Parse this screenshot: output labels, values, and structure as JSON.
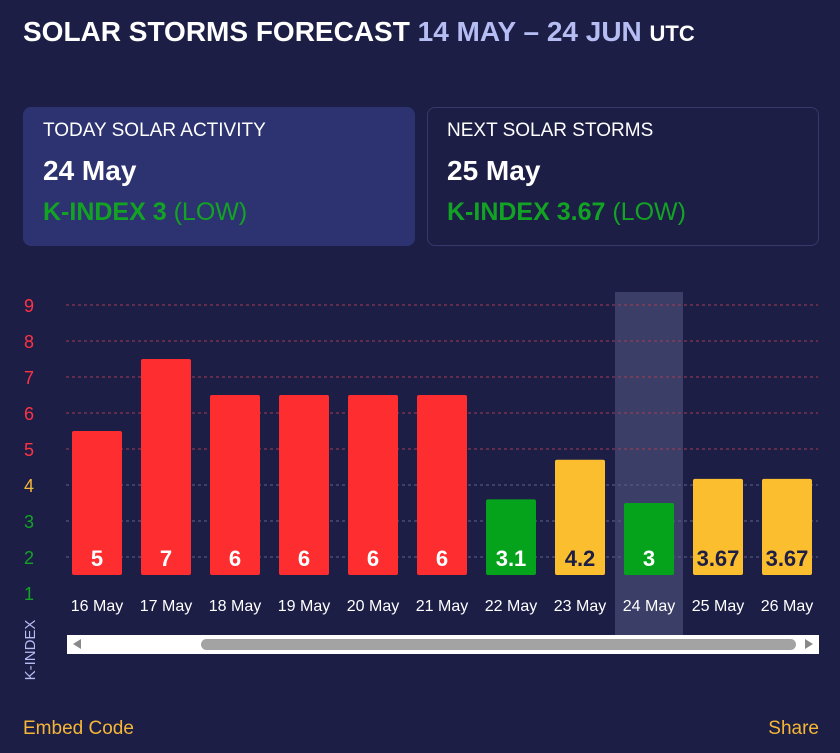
{
  "header": {
    "title": "SOLAR STORMS FORECAST",
    "range": "14 MAY – 24 JUN",
    "timezone": "UTC"
  },
  "today_card": {
    "label": "TODAY SOLAR ACTIVITY",
    "date": "24 May",
    "k_name": "K-INDEX 3",
    "k_level": "(LOW)"
  },
  "next_card": {
    "label": "NEXT SOLAR STORMS",
    "date": "25 May",
    "k_name": "K-INDEX 3.67",
    "k_level": "(LOW)"
  },
  "chart_data": {
    "type": "bar",
    "categories": [
      "16 May",
      "17 May",
      "18 May",
      "19 May",
      "20 May",
      "21 May",
      "22 May",
      "23 May",
      "24 May",
      "25 May",
      "26 May"
    ],
    "values": [
      5,
      7,
      6,
      6,
      6,
      6,
      3.1,
      4.2,
      3,
      3.67,
      3.67
    ],
    "value_labels": [
      "5",
      "7",
      "6",
      "6",
      "6",
      "6",
      "3.1",
      "4.2",
      "3",
      "3.67",
      "3.67"
    ],
    "bar_colors": [
      "#fe2d2f",
      "#fe2d2f",
      "#fe2d2f",
      "#fe2d2f",
      "#fe2d2f",
      "#fe2d2f",
      "#05a31c",
      "#fbbe2e",
      "#05a31c",
      "#fbbe2e",
      "#fbbe2e"
    ],
    "label_colors": [
      "#ffffff",
      "#ffffff",
      "#ffffff",
      "#ffffff",
      "#ffffff",
      "#ffffff",
      "#ffffff",
      "#1c1e46",
      "#ffffff",
      "#1c1e46",
      "#1c1e46"
    ],
    "highlighted_category": "24 May",
    "ylabel": "K-INDEX",
    "yticks": [
      1,
      2,
      3,
      4,
      5,
      6,
      7,
      8,
      9
    ],
    "ytick_colors": [
      "#13a324",
      "#13a324",
      "#13a324",
      "#f6b637",
      "#ff3344",
      "#ff3344",
      "#ff3344",
      "#ff3344",
      "#ff3344"
    ],
    "ylim": [
      1,
      9
    ],
    "grid": true,
    "grid_colors": {
      "low": "#5e6288",
      "high": "#a83a52"
    }
  },
  "footer": {
    "embed_label": "Embed Code",
    "share_label": "Share"
  }
}
